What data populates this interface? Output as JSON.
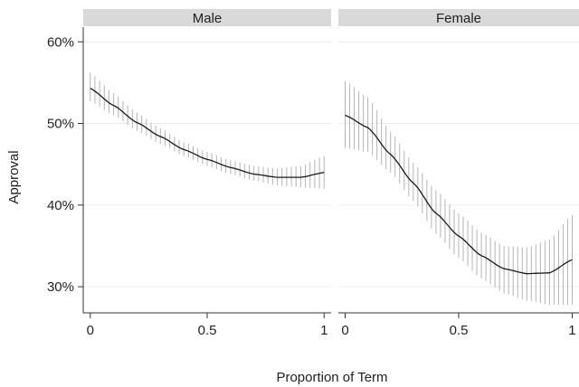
{
  "chart_data": {
    "type": "line",
    "ylabel": "Approval",
    "xlabel": "Proportion of Term",
    "ylim": [
      0.268,
      0.618
    ],
    "xlim": [
      -0.03,
      1.03
    ],
    "y_ticks": [
      {
        "value": 0.3,
        "label": "30%"
      },
      {
        "value": 0.4,
        "label": "40%"
      },
      {
        "value": 0.5,
        "label": "50%"
      },
      {
        "value": 0.6,
        "label": "60%"
      }
    ],
    "x_ticks": [
      {
        "value": 0,
        "label": "0"
      },
      {
        "value": 0.5,
        "label": "0.5"
      },
      {
        "value": 1,
        "label": "1"
      }
    ],
    "grid": true,
    "colors": {
      "line": "#1a1a1a",
      "ci": "#b4b4b4",
      "strip": "#d9d9d9",
      "grid": "#ececec",
      "axis": "#333333"
    },
    "panels": [
      {
        "title": "Male",
        "x": [
          0,
          0.1,
          0.2,
          0.3,
          0.4,
          0.5,
          0.6,
          0.7,
          0.8,
          0.9,
          1.0
        ],
        "y": [
          0.543,
          0.522,
          0.501,
          0.484,
          0.468,
          0.456,
          0.446,
          0.438,
          0.434,
          0.434,
          0.44
        ],
        "ci_low": [
          0.527,
          0.51,
          0.491,
          0.475,
          0.46,
          0.448,
          0.438,
          0.43,
          0.424,
          0.422,
          0.42
        ],
        "ci_high": [
          0.562,
          0.537,
          0.513,
          0.494,
          0.477,
          0.465,
          0.455,
          0.448,
          0.445,
          0.448,
          0.46
        ]
      },
      {
        "title": "Female",
        "x": [
          0,
          0.1,
          0.2,
          0.3,
          0.4,
          0.5,
          0.6,
          0.7,
          0.8,
          0.9,
          1.0
        ],
        "y": [
          0.51,
          0.495,
          0.462,
          0.427,
          0.39,
          0.362,
          0.338,
          0.322,
          0.316,
          0.317,
          0.333
        ],
        "ci_low": [
          0.47,
          0.465,
          0.44,
          0.405,
          0.365,
          0.335,
          0.31,
          0.292,
          0.283,
          0.278,
          0.278
        ],
        "ci_high": [
          0.552,
          0.532,
          0.49,
          0.452,
          0.418,
          0.39,
          0.366,
          0.35,
          0.348,
          0.358,
          0.388
        ]
      }
    ]
  }
}
